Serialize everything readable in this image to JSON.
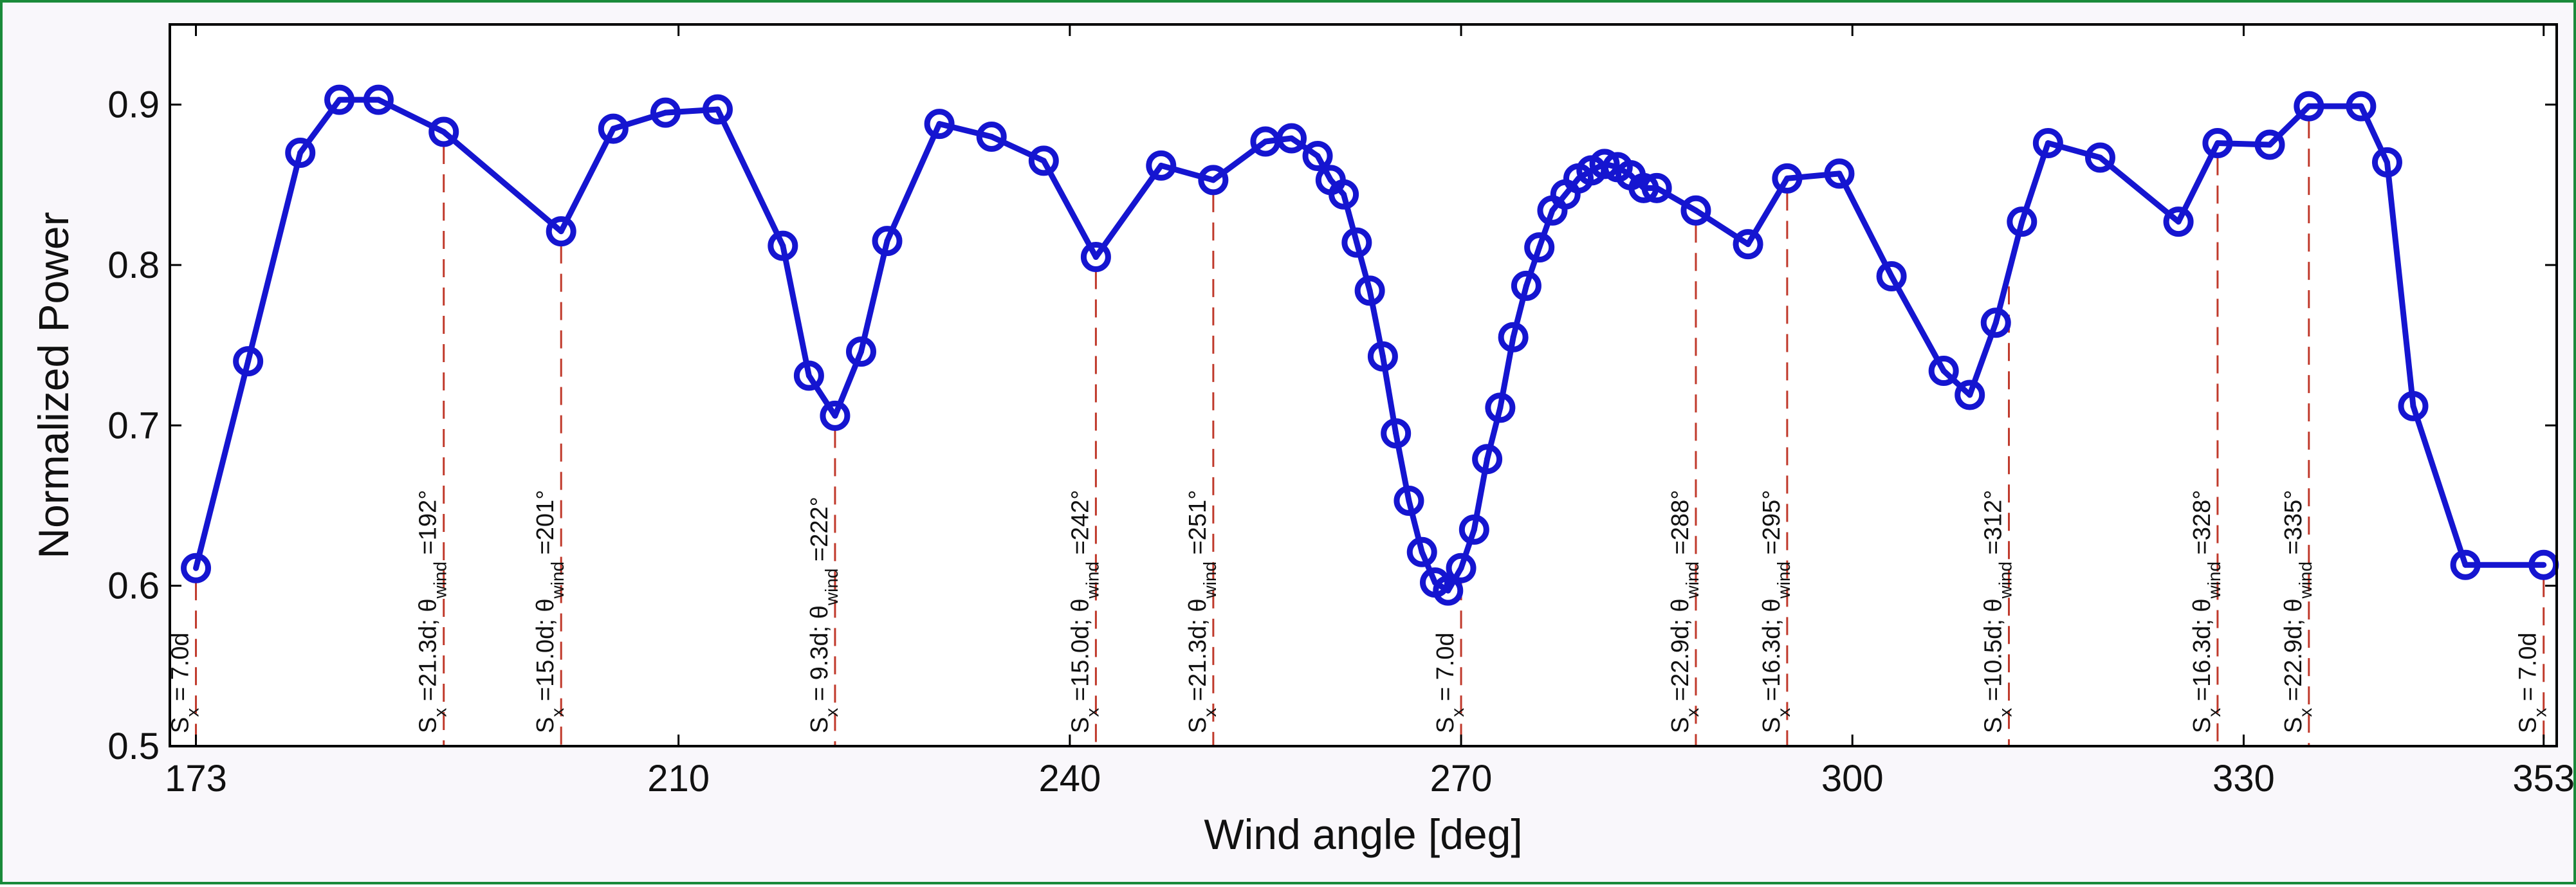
{
  "chart_data": {
    "type": "line",
    "xlabel": "Wind angle [deg]",
    "ylabel": "Normalized Power",
    "xlim": [
      171,
      354
    ],
    "ylim": [
      0.5,
      0.95
    ],
    "xticks": [
      173,
      210,
      240,
      270,
      300,
      330,
      353
    ],
    "yticks": [
      0.5,
      0.6,
      0.7,
      0.8,
      0.9
    ],
    "ytick_labels": [
      "0.5",
      "0.6",
      "0.7",
      "0.8",
      "0.9"
    ],
    "grid": false,
    "legend": "none",
    "series": [
      {
        "color": "#1515d0",
        "marker": "circle",
        "x": [
          173,
          177,
          181,
          184,
          187,
          192,
          201,
          205,
          209,
          213,
          218,
          220,
          222,
          224,
          226,
          230,
          234,
          238,
          242,
          247,
          251,
          255,
          257,
          259,
          260,
          261,
          262,
          263,
          264,
          265,
          266,
          267,
          268,
          269,
          270,
          271,
          272,
          273,
          274,
          275,
          276,
          277,
          278,
          279,
          280,
          281,
          282,
          283,
          284,
          285,
          288,
          292,
          295,
          299,
          303,
          307,
          309,
          311,
          313,
          315,
          319,
          325,
          328,
          332,
          335,
          339,
          341,
          343,
          347,
          353
        ],
        "y": [
          0.611,
          0.74,
          0.87,
          0.903,
          0.903,
          0.883,
          0.821,
          0.885,
          0.895,
          0.897,
          0.812,
          0.731,
          0.706,
          0.746,
          0.815,
          0.888,
          0.88,
          0.865,
          0.805,
          0.862,
          0.853,
          0.877,
          0.879,
          0.868,
          0.853,
          0.844,
          0.814,
          0.784,
          0.743,
          0.695,
          0.653,
          0.621,
          0.602,
          0.597,
          0.611,
          0.635,
          0.679,
          0.711,
          0.755,
          0.787,
          0.811,
          0.834,
          0.844,
          0.854,
          0.859,
          0.863,
          0.861,
          0.856,
          0.848,
          0.848,
          0.834,
          0.813,
          0.854,
          0.857,
          0.793,
          0.734,
          0.719,
          0.764,
          0.827,
          0.876,
          0.867,
          0.827,
          0.876,
          0.875,
          0.899,
          0.899,
          0.864,
          0.712,
          0.613,
          0.613
        ]
      }
    ],
    "annotations": [
      {
        "x": 173,
        "sx": "7.0d",
        "wind": ""
      },
      {
        "x": 192,
        "sx": "21.3d",
        "wind": "192°"
      },
      {
        "x": 201,
        "sx": "15.0d",
        "wind": "201°"
      },
      {
        "x": 222,
        "sx": " 9.3d",
        "wind": "222°"
      },
      {
        "x": 242,
        "sx": "15.0d",
        "wind": "242°"
      },
      {
        "x": 251,
        "sx": "21.3d",
        "wind": "251°"
      },
      {
        "x": 270,
        "sx": "7.0d",
        "wind": ""
      },
      {
        "x": 288,
        "sx": "22.9d",
        "wind": "288°"
      },
      {
        "x": 295,
        "sx": "16.3d",
        "wind": "295°"
      },
      {
        "x": 312,
        "sx": "10.5d",
        "wind": "312°"
      },
      {
        "x": 328,
        "sx": "16.3d",
        "wind": "328°"
      },
      {
        "x": 335,
        "sx": "22.9d",
        "wind": "335°"
      },
      {
        "x": 353,
        "sx": "7.0d",
        "wind": ""
      }
    ],
    "annotation_color": "#c0392b"
  }
}
